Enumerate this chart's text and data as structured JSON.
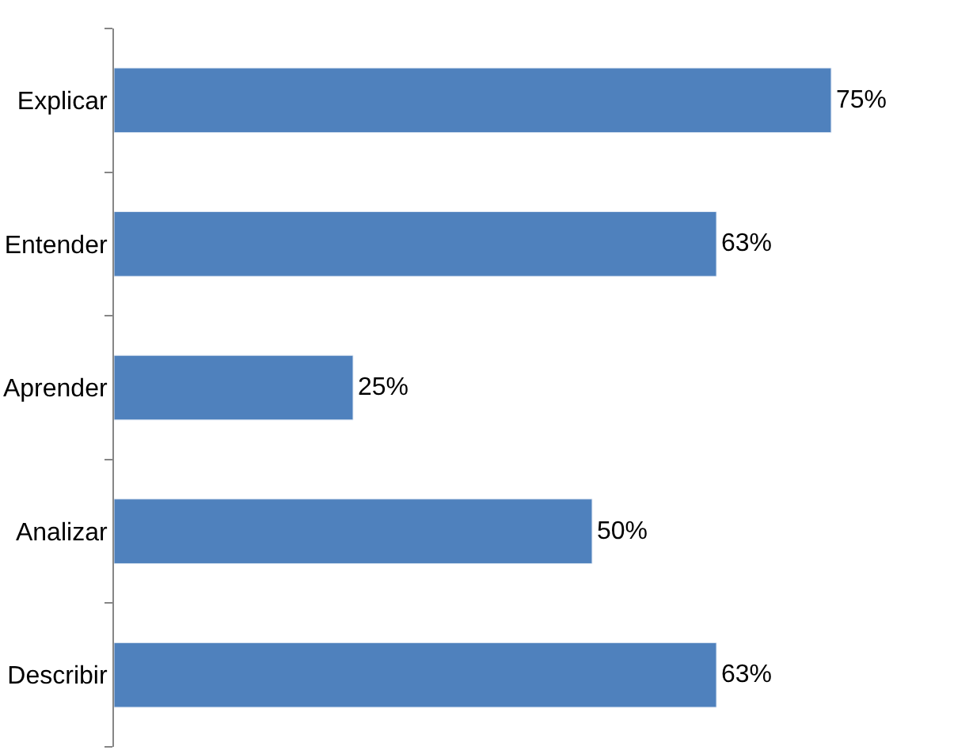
{
  "chart_data": {
    "type": "bar",
    "orientation": "horizontal",
    "categories": [
      "Explicar",
      "Entender",
      "Aprender",
      "Analizar",
      "Describir"
    ],
    "values": [
      75,
      63,
      25,
      50,
      63
    ],
    "value_labels": [
      "75%",
      "63%",
      "25%",
      "50%",
      "63%"
    ],
    "color": "#4f81bd"
  }
}
